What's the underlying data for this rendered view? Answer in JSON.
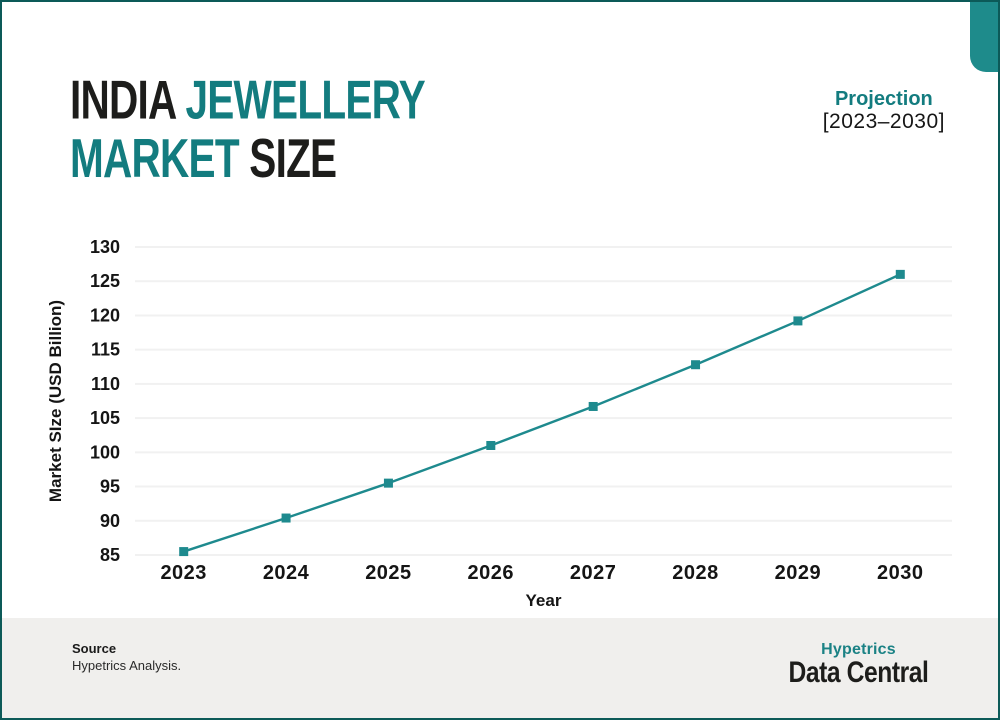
{
  "colors": {
    "accent_teal": "#137C7F",
    "line_teal": "#1E8A8E",
    "dark_text": "#1D1D1B",
    "border_teal": "#0C5A58",
    "tab_teal": "#1E8B8B",
    "footer_bg": "#F0EFED",
    "grid_gray": "#F1F1F1"
  },
  "header": {
    "title_lines": [
      {
        "segments": [
          {
            "text": "INDIA ",
            "teal": false
          },
          {
            "text": "JEWELLERY",
            "teal": true
          }
        ]
      },
      {
        "segments": [
          {
            "text": "MARKET ",
            "teal": true
          },
          {
            "text": "SIZE",
            "teal": false
          }
        ]
      }
    ],
    "projection_label": "Projection",
    "projection_range": "[2023–2030]"
  },
  "chart_data": {
    "type": "line",
    "x": [
      "2023",
      "2024",
      "2025",
      "2026",
      "2027",
      "2028",
      "2029",
      "2030"
    ],
    "series": [
      {
        "name": "India jewellery market size (USD Billion)",
        "values": [
          85.5,
          90.4,
          95.5,
          101.0,
          106.7,
          112.8,
          119.2,
          126.0
        ]
      }
    ],
    "xlabel": "Year",
    "ylabel": "Market SIze (USD Billion)",
    "ylim": [
      85,
      130
    ],
    "yticks": [
      85,
      90,
      95,
      100,
      105,
      110,
      115,
      120,
      125,
      130
    ],
    "grid": true,
    "legend": false,
    "marker": "square"
  },
  "footer": {
    "source_label": "Source",
    "source_text": "Hypetrics Analysis.",
    "logo_top": "Hypetrics",
    "logo_bottom": "Data Central"
  }
}
